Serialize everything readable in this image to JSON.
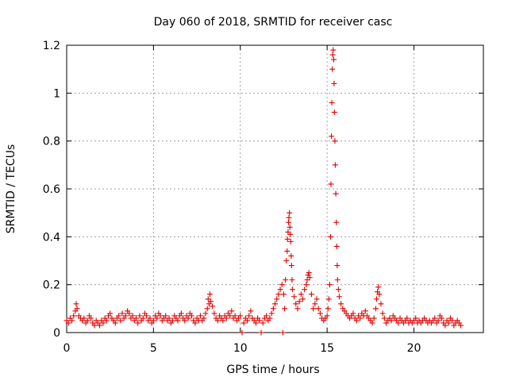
{
  "chart_data": {
    "type": "scatter",
    "title": "Day 060 of 2018, SRMTID for receiver casc",
    "xlabel": "GPS time / hours",
    "ylabel": "SRMTID / TECUs",
    "xlim": [
      0,
      24
    ],
    "ylim": [
      0,
      1.2
    ],
    "xticks": [
      0,
      5,
      10,
      15,
      20
    ],
    "yticks": [
      0,
      0.2,
      0.4,
      0.6,
      0.8,
      1,
      1.2
    ],
    "ytick_labels": [
      "0",
      "0.2",
      "0.4",
      "0.6",
      "0.8",
      "1",
      "1.2"
    ],
    "grid": true,
    "marker": "+",
    "color": "#dd0000",
    "series": [
      {
        "name": "SRMTID",
        "points": [
          [
            0.0,
            0.05
          ],
          [
            0.1,
            0.04
          ],
          [
            0.2,
            0.06
          ],
          [
            0.3,
            0.05
          ],
          [
            0.4,
            0.07
          ],
          [
            0.5,
            0.09
          ],
          [
            0.55,
            0.12
          ],
          [
            0.6,
            0.1
          ],
          [
            0.7,
            0.07
          ],
          [
            0.8,
            0.06
          ],
          [
            0.9,
            0.05
          ],
          [
            1.0,
            0.06
          ],
          [
            1.1,
            0.04
          ],
          [
            1.2,
            0.05
          ],
          [
            1.3,
            0.07
          ],
          [
            1.4,
            0.06
          ],
          [
            1.5,
            0.04
          ],
          [
            1.6,
            0.03
          ],
          [
            1.7,
            0.05
          ],
          [
            1.8,
            0.04
          ],
          [
            1.9,
            0.03
          ],
          [
            2.0,
            0.05
          ],
          [
            2.1,
            0.04
          ],
          [
            2.2,
            0.06
          ],
          [
            2.3,
            0.05
          ],
          [
            2.4,
            0.07
          ],
          [
            2.5,
            0.08
          ],
          [
            2.6,
            0.06
          ],
          [
            2.7,
            0.05
          ],
          [
            2.8,
            0.04
          ],
          [
            2.9,
            0.06
          ],
          [
            3.0,
            0.07
          ],
          [
            3.1,
            0.05
          ],
          [
            3.2,
            0.08
          ],
          [
            3.3,
            0.06
          ],
          [
            3.4,
            0.07
          ],
          [
            3.5,
            0.09
          ],
          [
            3.6,
            0.08
          ],
          [
            3.7,
            0.06
          ],
          [
            3.8,
            0.07
          ],
          [
            3.9,
            0.05
          ],
          [
            4.0,
            0.06
          ],
          [
            4.1,
            0.04
          ],
          [
            4.2,
            0.07
          ],
          [
            4.3,
            0.05
          ],
          [
            4.4,
            0.06
          ],
          [
            4.5,
            0.08
          ],
          [
            4.6,
            0.07
          ],
          [
            4.7,
            0.05
          ],
          [
            4.8,
            0.06
          ],
          [
            4.9,
            0.04
          ],
          [
            5.0,
            0.05
          ],
          [
            5.1,
            0.07
          ],
          [
            5.2,
            0.06
          ],
          [
            5.3,
            0.08
          ],
          [
            5.4,
            0.07
          ],
          [
            5.5,
            0.05
          ],
          [
            5.6,
            0.06
          ],
          [
            5.7,
            0.07
          ],
          [
            5.8,
            0.05
          ],
          [
            5.9,
            0.06
          ],
          [
            6.0,
            0.04
          ],
          [
            6.1,
            0.05
          ],
          [
            6.2,
            0.07
          ],
          [
            6.3,
            0.06
          ],
          [
            6.4,
            0.05
          ],
          [
            6.5,
            0.07
          ],
          [
            6.6,
            0.08
          ],
          [
            6.7,
            0.06
          ],
          [
            6.8,
            0.05
          ],
          [
            6.9,
            0.07
          ],
          [
            7.0,
            0.06
          ],
          [
            7.1,
            0.08
          ],
          [
            7.2,
            0.07
          ],
          [
            7.3,
            0.05
          ],
          [
            7.4,
            0.04
          ],
          [
            7.5,
            0.06
          ],
          [
            7.6,
            0.05
          ],
          [
            7.7,
            0.07
          ],
          [
            7.8,
            0.05
          ],
          [
            7.9,
            0.06
          ],
          [
            8.0,
            0.08
          ],
          [
            8.1,
            0.1
          ],
          [
            8.15,
            0.14
          ],
          [
            8.2,
            0.12
          ],
          [
            8.25,
            0.16
          ],
          [
            8.3,
            0.13
          ],
          [
            8.4,
            0.11
          ],
          [
            8.5,
            0.08
          ],
          [
            8.6,
            0.06
          ],
          [
            8.7,
            0.05
          ],
          [
            8.8,
            0.07
          ],
          [
            8.9,
            0.06
          ],
          [
            9.0,
            0.05
          ],
          [
            9.1,
            0.07
          ],
          [
            9.2,
            0.06
          ],
          [
            9.3,
            0.08
          ],
          [
            9.4,
            0.07
          ],
          [
            9.5,
            0.09
          ],
          [
            9.6,
            0.06
          ],
          [
            9.7,
            0.07
          ],
          [
            9.8,
            0.05
          ],
          [
            9.9,
            0.06
          ],
          [
            10.0,
            0.07
          ],
          [
            10.1,
            0.0
          ],
          [
            10.2,
            0.04
          ],
          [
            10.3,
            0.06
          ],
          [
            10.4,
            0.05
          ],
          [
            10.5,
            0.07
          ],
          [
            10.6,
            0.09
          ],
          [
            10.7,
            0.06
          ],
          [
            10.8,
            0.05
          ],
          [
            10.9,
            0.04
          ],
          [
            11.0,
            0.06
          ],
          [
            11.1,
            0.05
          ],
          [
            11.2,
            0.0
          ],
          [
            11.3,
            0.04
          ],
          [
            11.4,
            0.06
          ],
          [
            11.5,
            0.07
          ],
          [
            11.6,
            0.05
          ],
          [
            11.7,
            0.06
          ],
          [
            11.8,
            0.08
          ],
          [
            11.9,
            0.1
          ],
          [
            12.0,
            0.12
          ],
          [
            12.1,
            0.14
          ],
          [
            12.2,
            0.16
          ],
          [
            12.3,
            0.18
          ],
          [
            12.4,
            0.2
          ],
          [
            12.45,
            0.0
          ],
          [
            12.5,
            0.16
          ],
          [
            12.55,
            0.1
          ],
          [
            12.6,
            0.22
          ],
          [
            12.65,
            0.3
          ],
          [
            12.7,
            0.34
          ],
          [
            12.72,
            0.39
          ],
          [
            12.75,
            0.42
          ],
          [
            12.78,
            0.46
          ],
          [
            12.8,
            0.48
          ],
          [
            12.83,
            0.5
          ],
          [
            12.85,
            0.44
          ],
          [
            12.88,
            0.41
          ],
          [
            12.9,
            0.38
          ],
          [
            12.93,
            0.32
          ],
          [
            12.95,
            0.28
          ],
          [
            12.98,
            0.22
          ],
          [
            13.0,
            0.18
          ],
          [
            13.1,
            0.15
          ],
          [
            13.2,
            0.12
          ],
          [
            13.3,
            0.1
          ],
          [
            13.4,
            0.13
          ],
          [
            13.5,
            0.16
          ],
          [
            13.6,
            0.14
          ],
          [
            13.7,
            0.18
          ],
          [
            13.8,
            0.2
          ],
          [
            13.85,
            0.22
          ],
          [
            13.9,
            0.24
          ],
          [
            13.95,
            0.25
          ],
          [
            14.0,
            0.23
          ],
          [
            14.1,
            0.16
          ],
          [
            14.2,
            0.1
          ],
          [
            14.3,
            0.12
          ],
          [
            14.4,
            0.14
          ],
          [
            14.5,
            0.1
          ],
          [
            14.6,
            0.08
          ],
          [
            14.7,
            0.06
          ],
          [
            14.8,
            0.05
          ],
          [
            14.9,
            0.06
          ],
          [
            15.0,
            0.07
          ],
          [
            15.05,
            0.1
          ],
          [
            15.1,
            0.14
          ],
          [
            15.15,
            0.2
          ],
          [
            15.2,
            0.4
          ],
          [
            15.22,
            0.62
          ],
          [
            15.25,
            0.82
          ],
          [
            15.27,
            0.96
          ],
          [
            15.3,
            1.1
          ],
          [
            15.32,
            1.16
          ],
          [
            15.35,
            1.18
          ],
          [
            15.38,
            1.14
          ],
          [
            15.4,
            1.04
          ],
          [
            15.42,
            0.92
          ],
          [
            15.45,
            0.8
          ],
          [
            15.47,
            0.7
          ],
          [
            15.5,
            0.58
          ],
          [
            15.53,
            0.46
          ],
          [
            15.55,
            0.36
          ],
          [
            15.58,
            0.28
          ],
          [
            15.6,
            0.22
          ],
          [
            15.65,
            0.18
          ],
          [
            15.7,
            0.15
          ],
          [
            15.8,
            0.12
          ],
          [
            15.9,
            0.1
          ],
          [
            16.0,
            0.09
          ],
          [
            16.1,
            0.08
          ],
          [
            16.2,
            0.07
          ],
          [
            16.3,
            0.06
          ],
          [
            16.4,
            0.07
          ],
          [
            16.5,
            0.08
          ],
          [
            16.6,
            0.06
          ],
          [
            16.7,
            0.05
          ],
          [
            16.8,
            0.07
          ],
          [
            16.9,
            0.06
          ],
          [
            17.0,
            0.08
          ],
          [
            17.1,
            0.07
          ],
          [
            17.2,
            0.09
          ],
          [
            17.3,
            0.07
          ],
          [
            17.4,
            0.06
          ],
          [
            17.5,
            0.05
          ],
          [
            17.6,
            0.04
          ],
          [
            17.7,
            0.06
          ],
          [
            17.8,
            0.1
          ],
          [
            17.85,
            0.14
          ],
          [
            17.9,
            0.17
          ],
          [
            17.95,
            0.19
          ],
          [
            18.0,
            0.16
          ],
          [
            18.1,
            0.12
          ],
          [
            18.2,
            0.08
          ],
          [
            18.3,
            0.06
          ],
          [
            18.4,
            0.04
          ],
          [
            18.5,
            0.05
          ],
          [
            18.6,
            0.06
          ],
          [
            18.7,
            0.05
          ],
          [
            18.8,
            0.07
          ],
          [
            18.9,
            0.06
          ],
          [
            19.0,
            0.05
          ],
          [
            19.1,
            0.04
          ],
          [
            19.2,
            0.06
          ],
          [
            19.3,
            0.05
          ],
          [
            19.4,
            0.04
          ],
          [
            19.5,
            0.05
          ],
          [
            19.6,
            0.06
          ],
          [
            19.7,
            0.04
          ],
          [
            19.8,
            0.05
          ],
          [
            19.9,
            0.04
          ],
          [
            20.0,
            0.05
          ],
          [
            20.1,
            0.06
          ],
          [
            20.2,
            0.04
          ],
          [
            20.3,
            0.05
          ],
          [
            20.4,
            0.04
          ],
          [
            20.5,
            0.05
          ],
          [
            20.6,
            0.06
          ],
          [
            20.7,
            0.05
          ],
          [
            20.8,
            0.04
          ],
          [
            20.9,
            0.05
          ],
          [
            21.0,
            0.04
          ],
          [
            21.1,
            0.05
          ],
          [
            21.2,
            0.06
          ],
          [
            21.3,
            0.04
          ],
          [
            21.4,
            0.05
          ],
          [
            21.5,
            0.07
          ],
          [
            21.6,
            0.06
          ],
          [
            21.7,
            0.04
          ],
          [
            21.8,
            0.03
          ],
          [
            21.9,
            0.05
          ],
          [
            22.0,
            0.04
          ],
          [
            22.1,
            0.06
          ],
          [
            22.2,
            0.05
          ],
          [
            22.3,
            0.03
          ],
          [
            22.4,
            0.04
          ],
          [
            22.5,
            0.05
          ],
          [
            22.6,
            0.04
          ],
          [
            22.7,
            0.03
          ]
        ]
      }
    ]
  }
}
